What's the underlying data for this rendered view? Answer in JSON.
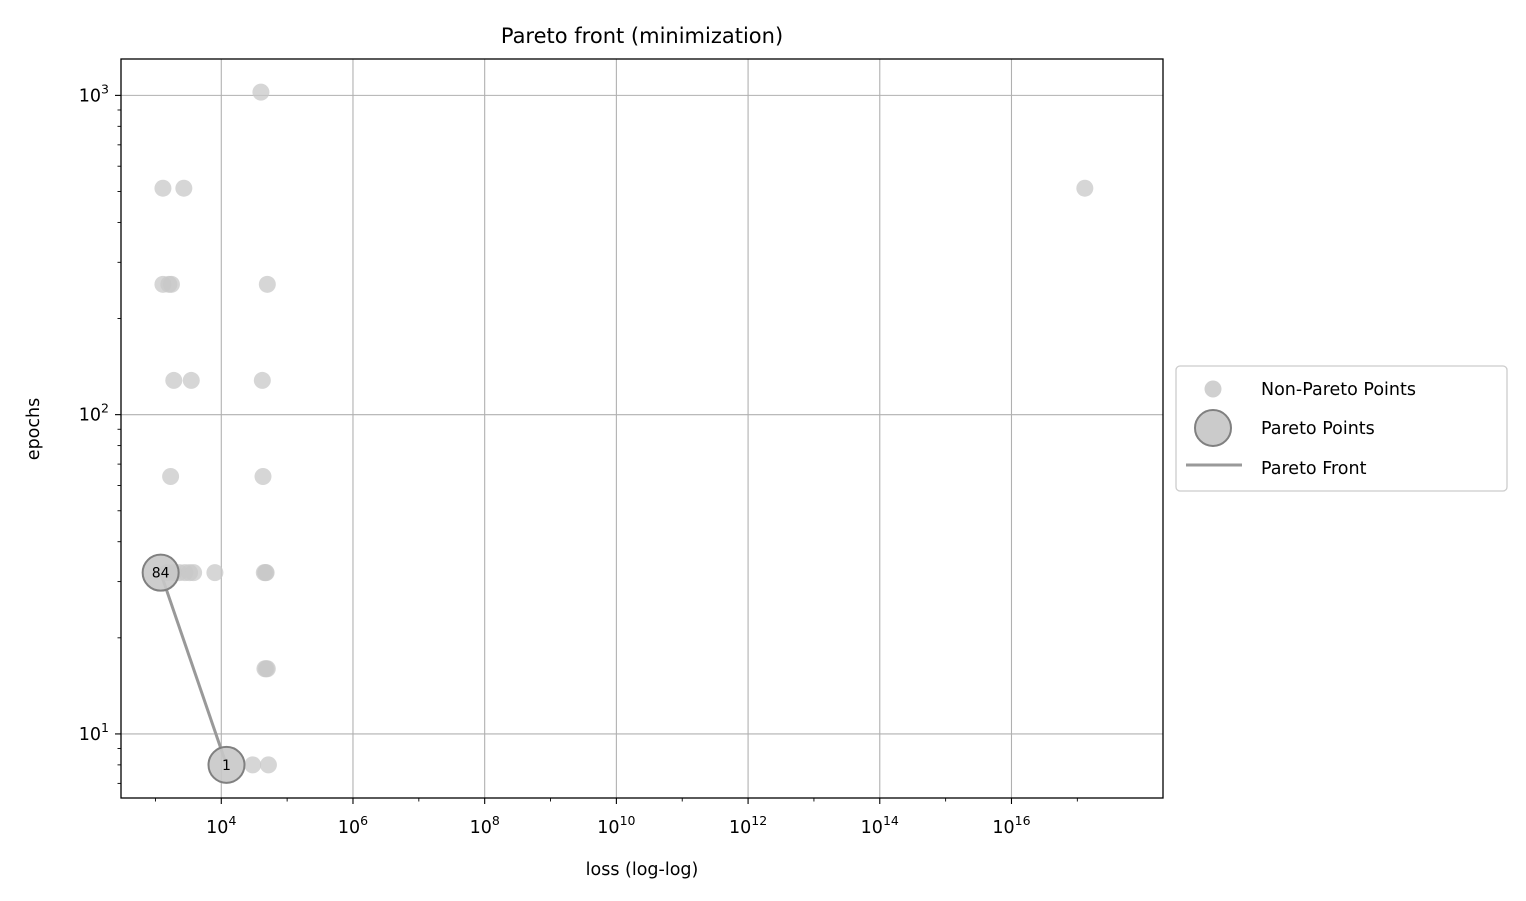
{
  "chart_data": {
    "type": "scatter",
    "title": "Pareto front (minimization)",
    "xlabel": "loss (log-log)",
    "ylabel": "epochs",
    "xscale": "log",
    "yscale": "log",
    "xlim": [
      300,
      2e+18
    ],
    "ylim": [
      6.3,
      1300
    ],
    "x_ticks": [
      {
        "base": "10",
        "exp": "4",
        "value": 10000.0
      },
      {
        "base": "10",
        "exp": "6",
        "value": 1000000.0
      },
      {
        "base": "10",
        "exp": "8",
        "value": 100000000.0
      },
      {
        "base": "10",
        "exp": "10",
        "value": 10000000000.0
      },
      {
        "base": "10",
        "exp": "12",
        "value": 1000000000000.0
      },
      {
        "base": "10",
        "exp": "14",
        "value": 100000000000000.0
      },
      {
        "base": "10",
        "exp": "16",
        "value": 1e+16
      }
    ],
    "y_ticks": [
      {
        "base": "10",
        "exp": "1",
        "value": 10
      },
      {
        "base": "10",
        "exp": "2",
        "value": 100
      },
      {
        "base": "10",
        "exp": "3",
        "value": 1000
      }
    ],
    "grid": true,
    "legend_position": "center-right-outside",
    "colors": {
      "point": "#c8c8c8",
      "pareto_edge": "#808080",
      "front_line": "#999999"
    },
    "series": [
      {
        "name": "Non-Pareto Points",
        "marker": "small-circle",
        "points": [
          {
            "x": 40000,
            "y": 1024
          },
          {
            "x": 1300,
            "y": 512
          },
          {
            "x": 2700,
            "y": 512
          },
          {
            "x": 1.3e+17,
            "y": 512
          },
          {
            "x": 1300,
            "y": 256
          },
          {
            "x": 1600,
            "y": 256
          },
          {
            "x": 1750,
            "y": 256
          },
          {
            "x": 50000,
            "y": 256
          },
          {
            "x": 1900,
            "y": 128
          },
          {
            "x": 3500,
            "y": 128
          },
          {
            "x": 42000,
            "y": 128
          },
          {
            "x": 1700,
            "y": 64
          },
          {
            "x": 43000,
            "y": 64
          },
          {
            "x": 1500,
            "y": 32
          },
          {
            "x": 1900,
            "y": 32
          },
          {
            "x": 2300,
            "y": 32
          },
          {
            "x": 2800,
            "y": 32
          },
          {
            "x": 3300,
            "y": 32
          },
          {
            "x": 3800,
            "y": 32
          },
          {
            "x": 8000,
            "y": 32
          },
          {
            "x": 45000,
            "y": 32
          },
          {
            "x": 47000,
            "y": 32
          },
          {
            "x": 48000,
            "y": 32
          },
          {
            "x": 46000,
            "y": 16
          },
          {
            "x": 48000,
            "y": 16
          },
          {
            "x": 50000,
            "y": 16
          },
          {
            "x": 30000,
            "y": 8
          },
          {
            "x": 52000,
            "y": 8
          }
        ]
      },
      {
        "name": "Pareto Points",
        "marker": "large-circle",
        "points": [
          {
            "x": 1200,
            "y": 32,
            "label": "84"
          },
          {
            "x": 12000,
            "y": 8,
            "label": "1"
          }
        ]
      },
      {
        "name": "Pareto Front",
        "marker": "line",
        "points": [
          {
            "x": 1200,
            "y": 32
          },
          {
            "x": 12000,
            "y": 8
          }
        ]
      }
    ]
  }
}
